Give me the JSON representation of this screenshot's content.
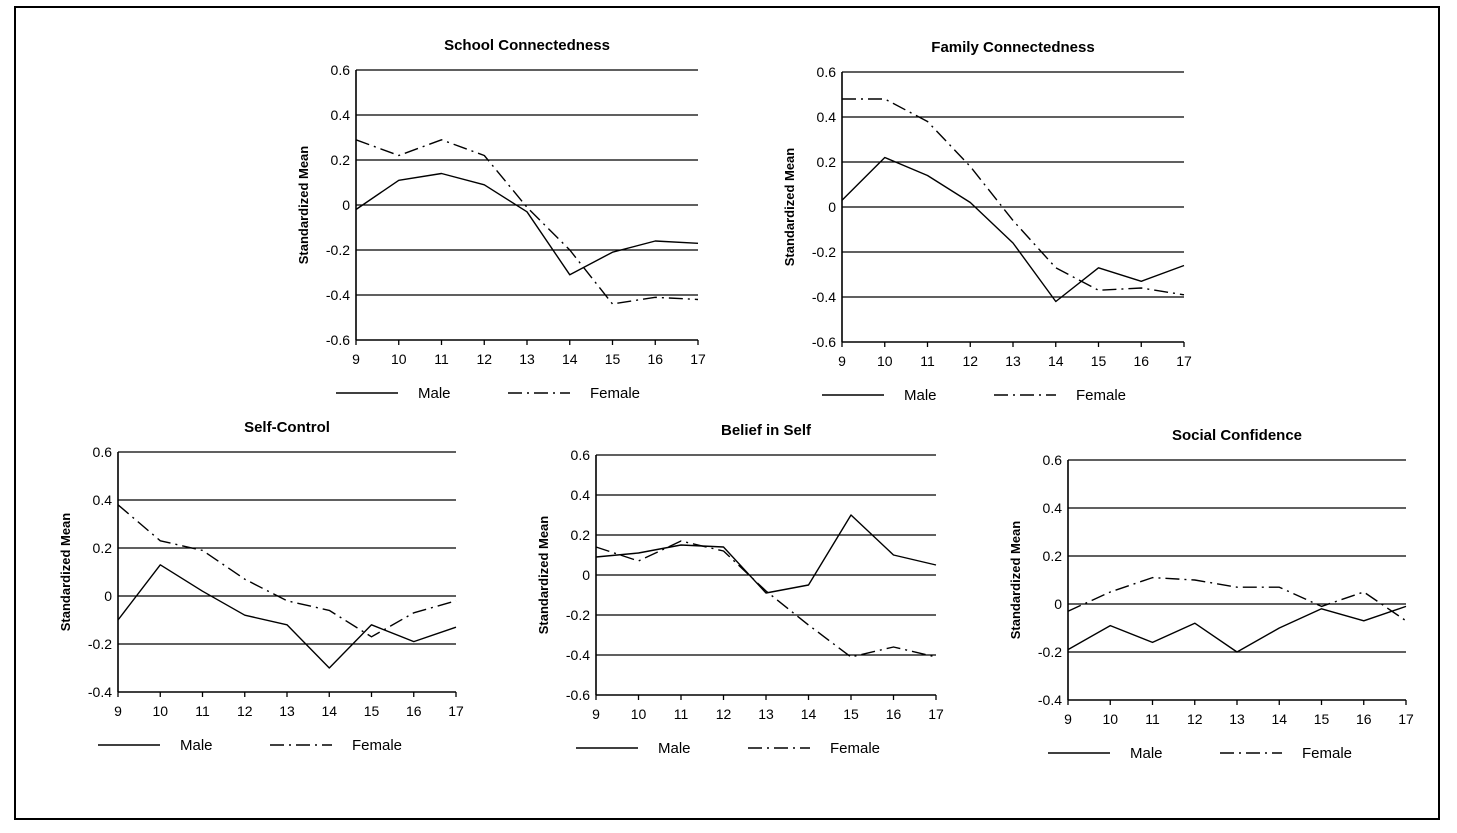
{
  "chart_data": [
    {
      "type": "line",
      "title": "School Connectedness",
      "ylabel": "Standardized Mean",
      "x": [
        9,
        10,
        11,
        12,
        13,
        14,
        15,
        16,
        17
      ],
      "ylim": [
        -0.6,
        0.6
      ],
      "yticks": [
        -0.6,
        -0.4,
        -0.2,
        0,
        0.2,
        0.4,
        0.6
      ],
      "grid": true,
      "legend": "bottom",
      "series": [
        {
          "name": "Male",
          "style": "solid",
          "values": [
            -0.02,
            0.11,
            0.14,
            0.09,
            -0.03,
            -0.31,
            -0.21,
            -0.16,
            -0.17
          ]
        },
        {
          "name": "Female",
          "style": "dashed",
          "values": [
            0.29,
            0.22,
            0.29,
            0.22,
            -0.01,
            -0.2,
            -0.44,
            -0.41,
            -0.42
          ]
        }
      ]
    },
    {
      "type": "line",
      "title": "Family Connectedness",
      "ylabel": "Standardized Mean",
      "x": [
        9,
        10,
        11,
        12,
        13,
        14,
        15,
        16,
        17
      ],
      "ylim": [
        -0.6,
        0.6
      ],
      "yticks": [
        -0.6,
        -0.4,
        -0.2,
        0,
        0.2,
        0.4,
        0.6
      ],
      "grid": true,
      "legend": "bottom",
      "series": [
        {
          "name": "Male",
          "style": "solid",
          "values": [
            0.03,
            0.22,
            0.14,
            0.02,
            -0.16,
            -0.42,
            -0.27,
            -0.33,
            -0.26
          ]
        },
        {
          "name": "Female",
          "style": "dashed",
          "values": [
            0.48,
            0.48,
            0.38,
            0.18,
            -0.06,
            -0.27,
            -0.37,
            -0.36,
            -0.39
          ]
        }
      ]
    },
    {
      "type": "line",
      "title": "Self-Control",
      "ylabel": "Standardized Mean",
      "x": [
        9,
        10,
        11,
        12,
        13,
        14,
        15,
        16,
        17
      ],
      "ylim": [
        -0.4,
        0.6
      ],
      "yticks": [
        -0.4,
        -0.2,
        0,
        0.2,
        0.4,
        0.6
      ],
      "grid": true,
      "legend": "bottom",
      "series": [
        {
          "name": "Male",
          "style": "solid",
          "values": [
            -0.1,
            0.13,
            0.02,
            -0.08,
            -0.12,
            -0.3,
            -0.12,
            -0.19,
            -0.13
          ]
        },
        {
          "name": "Female",
          "style": "dashed",
          "values": [
            0.38,
            0.23,
            0.19,
            0.07,
            -0.02,
            -0.06,
            -0.17,
            -0.07,
            -0.02
          ]
        }
      ]
    },
    {
      "type": "line",
      "title": "Belief in Self",
      "ylabel": "Standardized Mean",
      "x": [
        9,
        10,
        11,
        12,
        13,
        14,
        15,
        16,
        17
      ],
      "ylim": [
        -0.6,
        0.6
      ],
      "yticks": [
        -0.6,
        -0.4,
        -0.2,
        0,
        0.2,
        0.4,
        0.6
      ],
      "grid": true,
      "legend": "bottom",
      "series": [
        {
          "name": "Male",
          "style": "solid",
          "values": [
            0.09,
            0.11,
            0.15,
            0.14,
            -0.09,
            -0.05,
            0.3,
            0.1,
            0.05
          ]
        },
        {
          "name": "Female",
          "style": "dashed",
          "values": [
            0.14,
            0.07,
            0.17,
            0.12,
            -0.08,
            -0.25,
            -0.41,
            -0.36,
            -0.41
          ]
        }
      ]
    },
    {
      "type": "line",
      "title": "Social Confidence",
      "ylabel": "Standardized Mean",
      "x": [
        9,
        10,
        11,
        12,
        13,
        14,
        15,
        16,
        17
      ],
      "ylim": [
        -0.4,
        0.6
      ],
      "yticks": [
        -0.4,
        -0.2,
        0,
        0.2,
        0.4,
        0.6
      ],
      "grid": true,
      "legend": "bottom",
      "series": [
        {
          "name": "Male",
          "style": "solid",
          "values": [
            -0.19,
            -0.09,
            -0.16,
            -0.08,
            -0.2,
            -0.1,
            -0.02,
            -0.07,
            -0.01
          ]
        },
        {
          "name": "Female",
          "style": "dashed",
          "values": [
            -0.03,
            0.05,
            0.11,
            0.1,
            0.07,
            0.07,
            -0.01,
            0.05,
            -0.07
          ]
        }
      ]
    }
  ]
}
